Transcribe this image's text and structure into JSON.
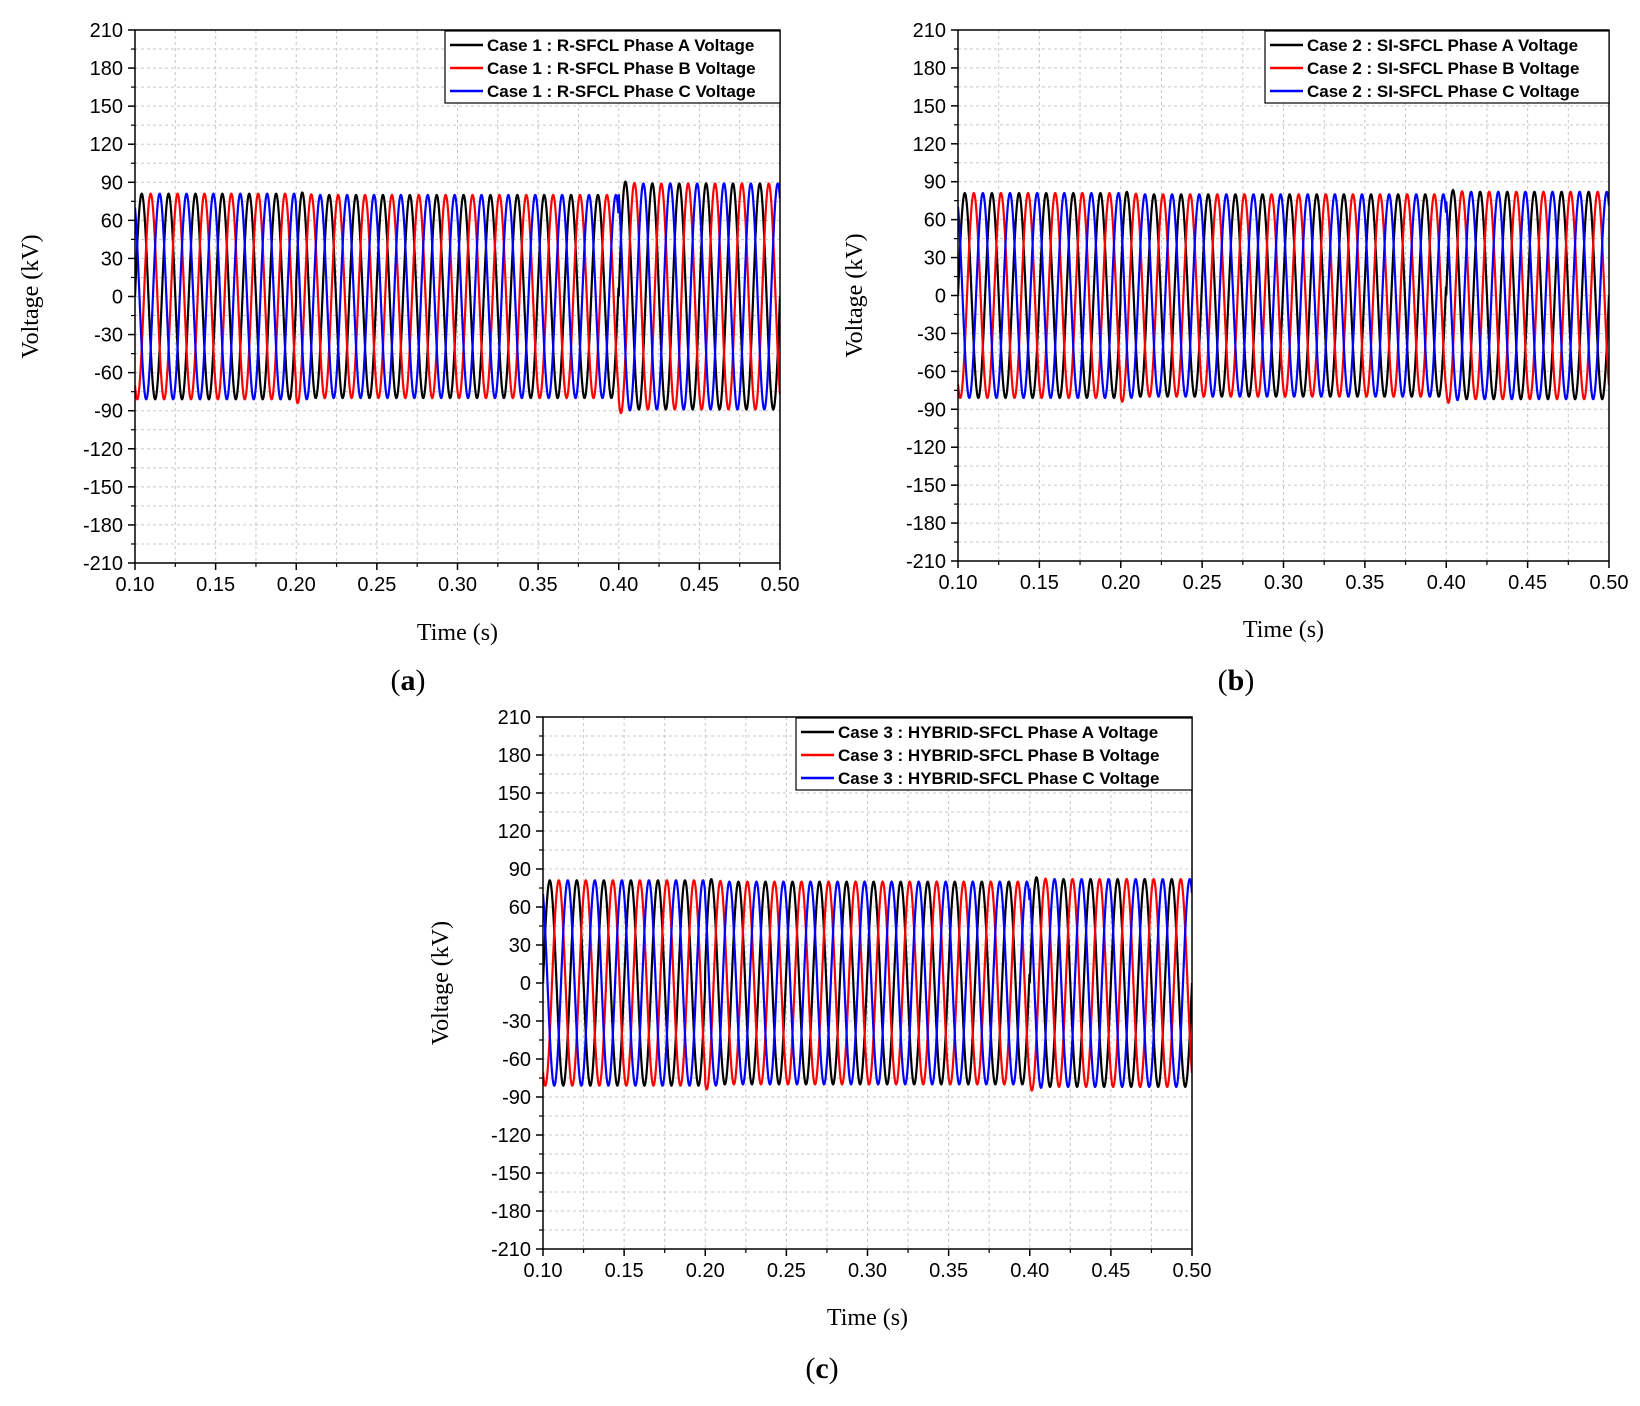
{
  "chart_data": [
    {
      "type": "line",
      "panel_label": "(a)",
      "panel_letter": "a",
      "xlabel": "Time (s)",
      "ylabel": "Voltage (kV)",
      "xlim": [
        0.1,
        0.5
      ],
      "ylim": [
        -210,
        210
      ],
      "xticks": [
        "0.10",
        "0.15",
        "0.20",
        "0.25",
        "0.30",
        "0.35",
        "0.40",
        "0.45",
        "0.50"
      ],
      "yticks": [
        "210",
        "180",
        "150",
        "120",
        "90",
        "60",
        "30",
        "0",
        "-30",
        "-60",
        "-90",
        "-120",
        "-150",
        "-180",
        "-210"
      ],
      "grid": true,
      "legend_position": "top-right",
      "frequency_hz": 60,
      "fault_start_s": 0.2,
      "fault_clear_s": 0.4,
      "series": [
        {
          "name": "Case 1 : R-SFCL Phase A Voltage",
          "color": "#000000",
          "phase_deg": 0,
          "amplitude_pre_kv": 81,
          "amplitude_fault_kv": 80,
          "amplitude_post_kv": 89
        },
        {
          "name": "Case 1 : R-SFCL Phase B Voltage",
          "color": "#ff0000",
          "phase_deg": -120,
          "amplitude_pre_kv": 81,
          "amplitude_fault_kv": 80,
          "amplitude_post_kv": 89
        },
        {
          "name": "Case 1 : R-SFCL Phase C Voltage",
          "color": "#0000ff",
          "phase_deg": 120,
          "amplitude_pre_kv": 81,
          "amplitude_fault_kv": 80,
          "amplitude_post_kv": 89
        }
      ]
    },
    {
      "type": "line",
      "panel_label": "(b)",
      "panel_letter": "b",
      "xlabel": "Time (s)",
      "ylabel": "Voltage (kV)",
      "xlim": [
        0.1,
        0.5
      ],
      "ylim": [
        -210,
        210
      ],
      "xticks": [
        "0.10",
        "0.15",
        "0.20",
        "0.25",
        "0.30",
        "0.35",
        "0.40",
        "0.45",
        "0.50"
      ],
      "yticks": [
        "210",
        "180",
        "150",
        "120",
        "90",
        "60",
        "30",
        "0",
        "-30",
        "-60",
        "-90",
        "-120",
        "-150",
        "-180",
        "-210"
      ],
      "grid": true,
      "legend_position": "top-right",
      "frequency_hz": 60,
      "fault_start_s": 0.2,
      "fault_clear_s": 0.4,
      "series": [
        {
          "name": "Case 2 : SI-SFCL Phase A Voltage",
          "color": "#000000",
          "phase_deg": 0,
          "amplitude_pre_kv": 81,
          "amplitude_fault_kv": 80,
          "amplitude_post_kv": 82
        },
        {
          "name": "Case 2 : SI-SFCL Phase B Voltage",
          "color": "#ff0000",
          "phase_deg": -120,
          "amplitude_pre_kv": 81,
          "amplitude_fault_kv": 80,
          "amplitude_post_kv": 82
        },
        {
          "name": "Case 2 : SI-SFCL Phase C Voltage",
          "color": "#0000ff",
          "phase_deg": 120,
          "amplitude_pre_kv": 81,
          "amplitude_fault_kv": 80,
          "amplitude_post_kv": 82
        }
      ]
    },
    {
      "type": "line",
      "panel_label": "(c)",
      "panel_letter": "c",
      "xlabel": "Time (s)",
      "ylabel": "Voltage (kV)",
      "xlim": [
        0.1,
        0.5
      ],
      "ylim": [
        -210,
        210
      ],
      "xticks": [
        "0.10",
        "0.15",
        "0.20",
        "0.25",
        "0.30",
        "0.35",
        "0.40",
        "0.45",
        "0.50"
      ],
      "yticks": [
        "210",
        "180",
        "150",
        "120",
        "90",
        "60",
        "30",
        "0",
        "-30",
        "-60",
        "-90",
        "-120",
        "-150",
        "-180",
        "-210"
      ],
      "grid": true,
      "legend_position": "top-right",
      "frequency_hz": 60,
      "fault_start_s": 0.2,
      "fault_clear_s": 0.4,
      "series": [
        {
          "name": "Case 3 : HYBRID-SFCL Phase A Voltage",
          "color": "#000000",
          "phase_deg": 0,
          "amplitude_pre_kv": 81,
          "amplitude_fault_kv": 80,
          "amplitude_post_kv": 82
        },
        {
          "name": "Case 3 : HYBRID-SFCL Phase B Voltage",
          "color": "#ff0000",
          "phase_deg": -120,
          "amplitude_pre_kv": 81,
          "amplitude_fault_kv": 80,
          "amplitude_post_kv": 82
        },
        {
          "name": "Case 3 : HYBRID-SFCL Phase C Voltage",
          "color": "#0000ff",
          "phase_deg": 120,
          "amplitude_pre_kv": 81,
          "amplitude_fault_kv": 80,
          "amplitude_post_kv": 82
        }
      ]
    }
  ]
}
